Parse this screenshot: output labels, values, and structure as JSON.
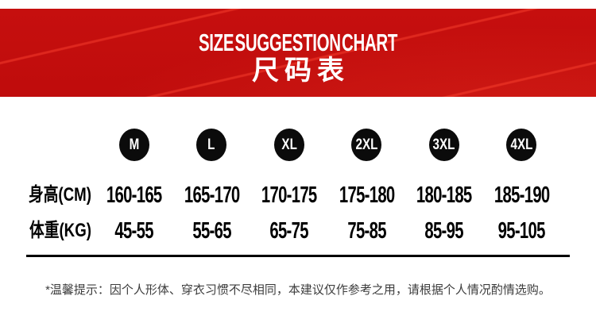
{
  "chart_data": {
    "type": "table",
    "title": "SIZE SUGGESTION CHART",
    "subtitle": "尺码表",
    "columns": [
      "M",
      "L",
      "XL",
      "2XL",
      "3XL",
      "4XL"
    ],
    "rows": [
      {
        "label": "身高(CM)",
        "values": [
          "160-165",
          "165-170",
          "170-175",
          "175-180",
          "180-185",
          "185-190"
        ]
      },
      {
        "label": "体重(KG)",
        "values": [
          "45-55",
          "55-65",
          "65-75",
          "75-85",
          "85-95",
          "95-105"
        ]
      }
    ],
    "footnote": "*温馨提示：因个人形体、穿衣习惯不尽相同，本建议仅作参考之用，请根据个人情况酌情选购。"
  },
  "colors": {
    "banner_red": "#c10d0d",
    "banner_streak": "#e8463a",
    "badge_black": "#0b0b0b",
    "text_black": "#000000",
    "note_gray": "#3d3d3d"
  }
}
